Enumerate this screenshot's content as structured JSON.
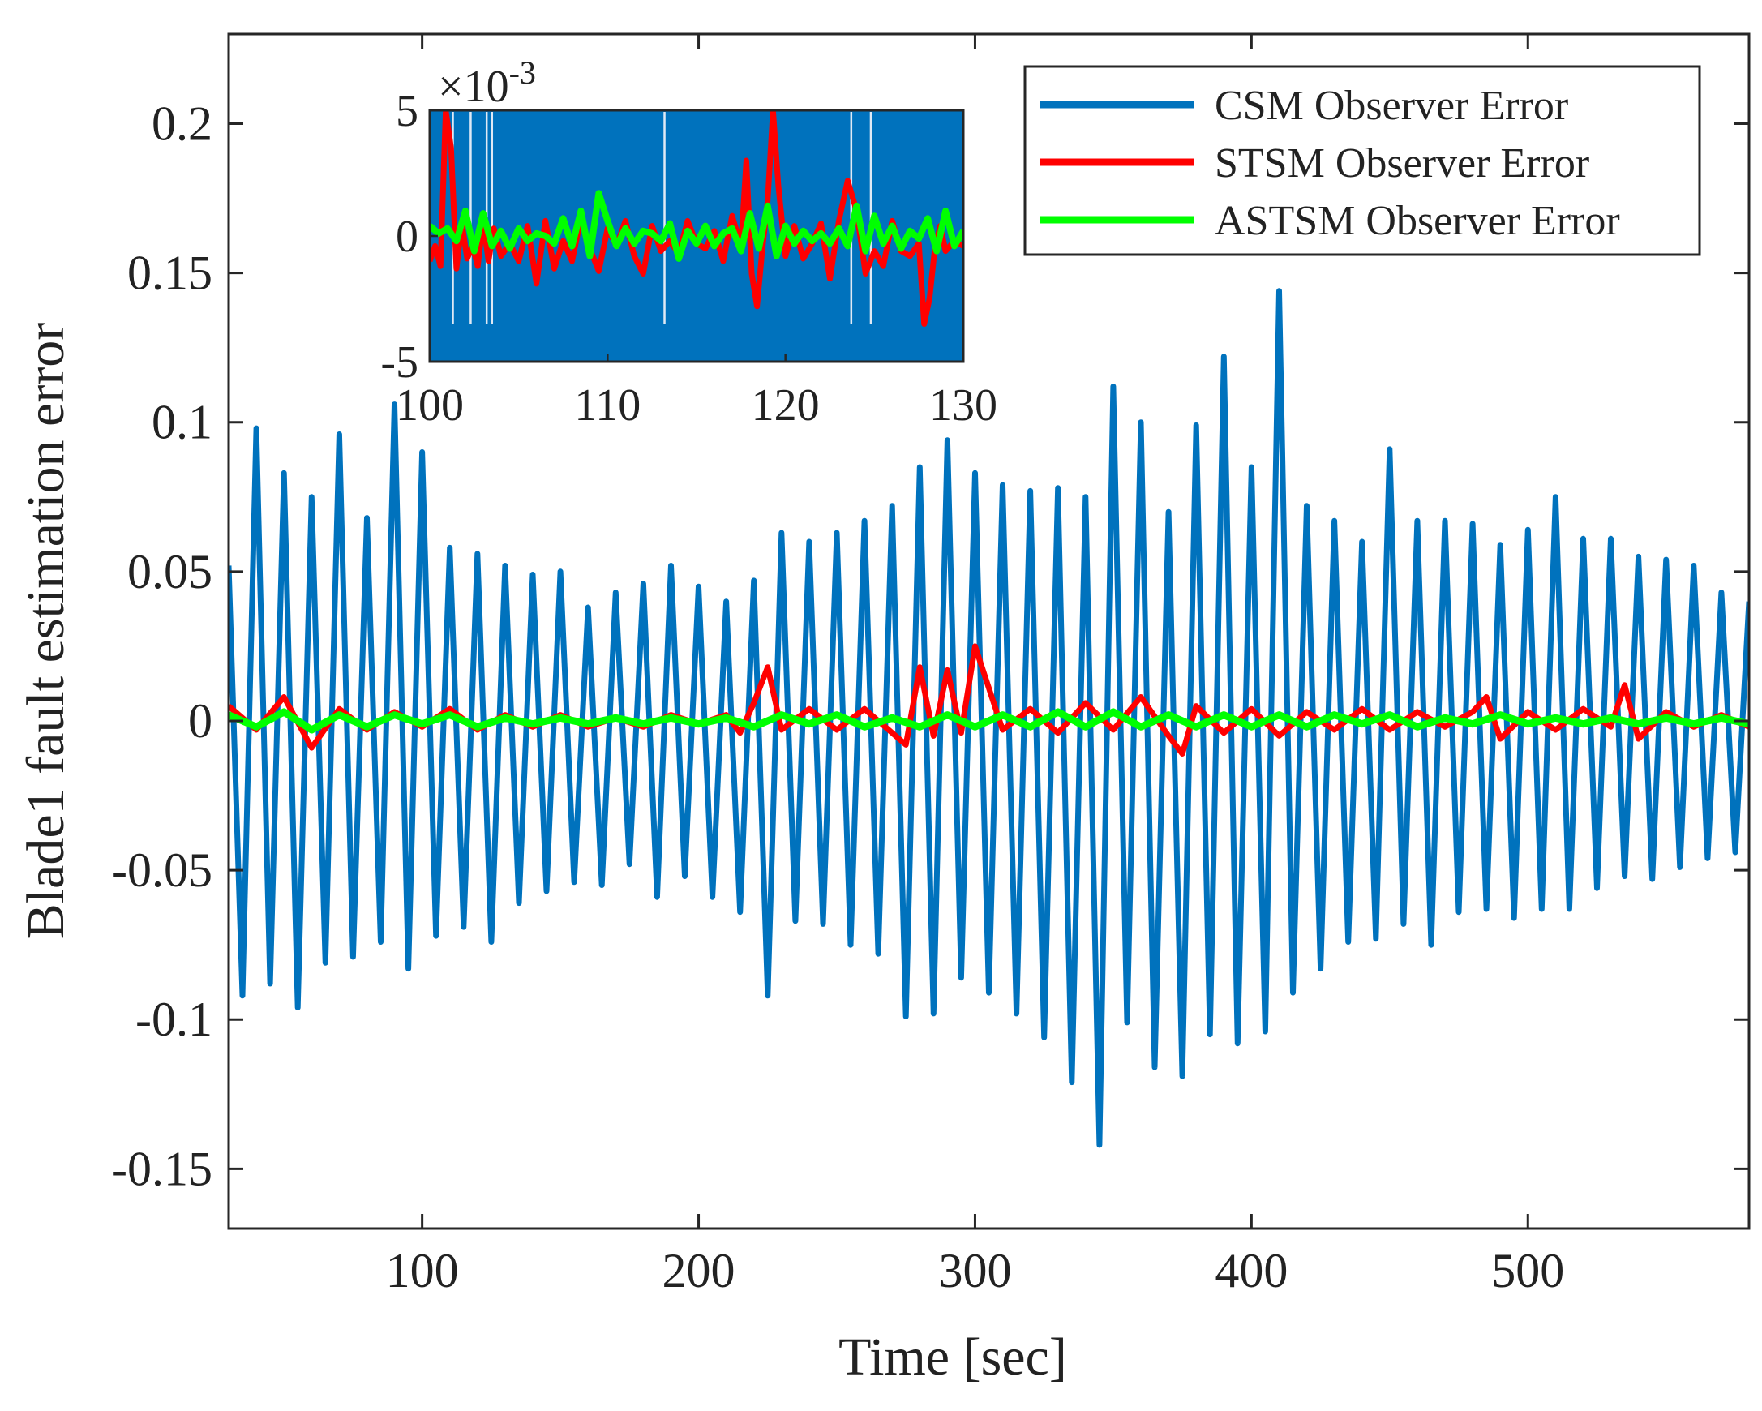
{
  "chart_data": [
    {
      "id": "main",
      "type": "line",
      "title": "",
      "xlabel": "Time [sec]",
      "ylabel": "Blade1 fault estimation error",
      "xlim": [
        30,
        580
      ],
      "ylim": [
        -0.17,
        0.23
      ],
      "xticks": [
        100,
        200,
        300,
        400,
        500
      ],
      "xtick_labels": [
        "100",
        "200",
        "300",
        "400",
        "500"
      ],
      "yticks": [
        -0.15,
        -0.1,
        -0.05,
        0,
        0.05,
        0.1,
        0.15,
        0.2
      ],
      "ytick_labels": [
        "-0.15",
        "-0.1",
        "-0.05",
        "0",
        "0.05",
        "0.1",
        "0.15",
        "0.2"
      ],
      "grid": false,
      "legend_position": "top-right",
      "series": [
        {
          "name": "CSM Observer Error",
          "color": "#0072BD",
          "x": [
            30,
            35,
            40,
            45,
            50,
            55,
            60,
            65,
            70,
            75,
            80,
            85,
            90,
            95,
            100,
            105,
            110,
            115,
            120,
            125,
            130,
            135,
            140,
            145,
            150,
            155,
            160,
            165,
            170,
            175,
            180,
            185,
            190,
            195,
            200,
            205,
            210,
            215,
            220,
            225,
            230,
            235,
            240,
            245,
            250,
            255,
            260,
            265,
            270,
            275,
            280,
            285,
            290,
            295,
            300,
            305,
            310,
            315,
            320,
            325,
            330,
            335,
            340,
            345,
            350,
            355,
            360,
            365,
            370,
            375,
            380,
            385,
            390,
            395,
            400,
            405,
            410,
            415,
            420,
            425,
            430,
            435,
            440,
            445,
            450,
            455,
            460,
            465,
            470,
            475,
            480,
            485,
            490,
            495,
            500,
            505,
            510,
            515,
            520,
            525,
            530,
            535,
            540,
            545,
            550,
            555,
            560,
            565,
            570,
            575,
            580
          ],
          "values": [
            0.052,
            -0.092,
            0.098,
            -0.088,
            0.083,
            -0.096,
            0.075,
            -0.081,
            0.096,
            -0.079,
            0.068,
            -0.074,
            0.106,
            -0.083,
            0.09,
            -0.072,
            0.058,
            -0.069,
            0.056,
            -0.074,
            0.052,
            -0.061,
            0.049,
            -0.057,
            0.05,
            -0.054,
            0.038,
            -0.055,
            0.043,
            -0.048,
            0.046,
            -0.059,
            0.052,
            -0.052,
            0.045,
            -0.059,
            0.04,
            -0.064,
            0.047,
            -0.092,
            0.063,
            -0.067,
            0.06,
            -0.068,
            0.063,
            -0.075,
            0.067,
            -0.078,
            0.072,
            -0.099,
            0.085,
            -0.098,
            0.094,
            -0.086,
            0.083,
            -0.091,
            0.079,
            -0.098,
            0.077,
            -0.106,
            0.078,
            -0.121,
            0.075,
            -0.142,
            0.112,
            -0.101,
            0.1,
            -0.116,
            0.07,
            -0.119,
            0.099,
            -0.105,
            0.122,
            -0.108,
            0.085,
            -0.104,
            0.144,
            -0.091,
            0.072,
            -0.083,
            0.067,
            -0.074,
            0.06,
            -0.073,
            0.091,
            -0.068,
            0.067,
            -0.075,
            0.067,
            -0.064,
            0.066,
            -0.063,
            0.059,
            -0.066,
            0.064,
            -0.063,
            0.075,
            -0.063,
            0.061,
            -0.056,
            0.061,
            -0.052,
            0.055,
            -0.053,
            0.054,
            -0.049,
            0.052,
            -0.046,
            0.043,
            -0.044,
            0.04
          ]
        },
        {
          "name": "STSM Observer Error",
          "color": "#FF0000",
          "x": [
            30,
            40,
            50,
            60,
            70,
            80,
            90,
            100,
            110,
            120,
            130,
            140,
            150,
            160,
            170,
            180,
            190,
            200,
            210,
            215,
            220,
            225,
            230,
            240,
            250,
            260,
            270,
            275,
            280,
            285,
            290,
            295,
            300,
            310,
            320,
            330,
            340,
            350,
            360,
            370,
            375,
            380,
            390,
            400,
            410,
            420,
            430,
            440,
            450,
            460,
            470,
            480,
            485,
            490,
            500,
            510,
            520,
            530,
            535,
            540,
            550,
            560,
            570,
            580
          ],
          "values": [
            0.005,
            -0.003,
            0.008,
            -0.009,
            0.004,
            -0.003,
            0.003,
            -0.002,
            0.004,
            -0.003,
            0.002,
            -0.002,
            0.002,
            -0.002,
            0.001,
            -0.002,
            0.002,
            -0.001,
            0.002,
            -0.004,
            0.006,
            0.018,
            -0.003,
            0.004,
            -0.003,
            0.004,
            -0.004,
            -0.008,
            0.018,
            -0.005,
            0.017,
            -0.004,
            0.025,
            -0.003,
            0.004,
            -0.004,
            0.006,
            -0.003,
            0.008,
            -0.005,
            -0.011,
            0.005,
            -0.004,
            0.004,
            -0.005,
            0.003,
            -0.003,
            0.004,
            -0.003,
            0.003,
            -0.002,
            0.003,
            0.008,
            -0.006,
            0.003,
            -0.003,
            0.004,
            -0.002,
            0.012,
            -0.006,
            0.003,
            -0.002,
            0.002,
            -0.002
          ]
        },
        {
          "name": "ASTSM Observer Error",
          "color": "#00FF00",
          "x": [
            30,
            40,
            50,
            60,
            70,
            80,
            90,
            100,
            110,
            120,
            130,
            140,
            150,
            160,
            170,
            180,
            190,
            200,
            210,
            220,
            230,
            240,
            250,
            260,
            270,
            280,
            290,
            300,
            310,
            320,
            330,
            340,
            350,
            360,
            370,
            380,
            390,
            400,
            410,
            420,
            430,
            440,
            450,
            460,
            470,
            480,
            490,
            500,
            510,
            520,
            530,
            540,
            550,
            560,
            570,
            580
          ],
          "values": [
            0.002,
            -0.002,
            0.003,
            -0.003,
            0.002,
            -0.002,
            0.002,
            -0.001,
            0.002,
            -0.002,
            0.001,
            -0.001,
            0.001,
            -0.001,
            0.001,
            -0.001,
            0.001,
            -0.001,
            0.001,
            -0.002,
            0.002,
            -0.001,
            0.002,
            -0.002,
            0.001,
            -0.002,
            0.002,
            -0.002,
            0.002,
            -0.002,
            0.003,
            -0.002,
            0.003,
            -0.002,
            0.002,
            -0.002,
            0.002,
            -0.002,
            0.002,
            -0.002,
            0.002,
            -0.001,
            0.002,
            -0.002,
            0.001,
            -0.001,
            0.002,
            -0.001,
            0.001,
            -0.001,
            0.001,
            -0.001,
            0.001,
            -0.001,
            0.001,
            -0.001
          ]
        }
      ]
    },
    {
      "id": "inset",
      "type": "line",
      "title": "",
      "xlabel": "",
      "ylabel": "",
      "y_exponent_label": "×10",
      "y_exponent": "-3",
      "xlim": [
        100,
        130
      ],
      "ylim": [
        -5,
        5
      ],
      "xticks": [
        100,
        110,
        120,
        130
      ],
      "xtick_labels": [
        "100",
        "110",
        "120",
        "130"
      ],
      "yticks": [
        -5,
        0,
        5
      ],
      "ytick_labels": [
        "-5",
        "0",
        "5"
      ],
      "grid": false,
      "series": [
        {
          "name": "CSM Observer Error",
          "color": "#0072BD",
          "note": "fills entire inset range (exceeds ±5e-3)",
          "gaps_x": [
            101.3,
            102.3,
            103.2,
            103.5,
            113.2,
            123.7,
            124.8
          ]
        },
        {
          "name": "STSM Observer Error",
          "color": "#FF0000",
          "x": [
            100,
            100.3,
            100.6,
            100.9,
            101.2,
            101.5,
            101.8,
            102.1,
            102.4,
            102.7,
            103.0,
            103.3,
            103.6,
            104.0,
            104.5,
            105.0,
            105.5,
            106.0,
            106.5,
            107.0,
            107.5,
            108.0,
            108.5,
            109.0,
            109.5,
            110.0,
            110.5,
            111.0,
            111.5,
            112.0,
            112.5,
            113.0,
            113.5,
            114.0,
            114.5,
            115.0,
            115.5,
            116.0,
            116.5,
            117.0,
            117.5,
            117.8,
            118.1,
            118.4,
            118.7,
            119.0,
            119.3,
            119.6,
            120.0,
            120.5,
            121.0,
            121.5,
            122.0,
            122.5,
            123.0,
            123.5,
            124.0,
            124.5,
            125.0,
            125.5,
            126.0,
            126.5,
            127.0,
            127.5,
            127.8,
            128.1,
            128.4,
            128.7,
            129.0,
            129.5,
            130
          ],
          "values": [
            -1.0,
            -0.4,
            -1.2,
            5.0,
            3.5,
            -1.3,
            0.5,
            -0.9,
            -0.4,
            -1.2,
            0.6,
            -1.0,
            0.3,
            -0.8,
            -0.3,
            -1.0,
            0.4,
            -1.9,
            0.6,
            -1.3,
            -0.2,
            -1.0,
            0.7,
            -0.5,
            -1.4,
            0.3,
            -0.4,
            0.6,
            -0.8,
            -1.5,
            0.4,
            -0.6,
            -0.2,
            -0.7,
            0.6,
            -0.3,
            -0.5,
            0.2,
            -1.0,
            0.8,
            -0.4,
            3.0,
            -1.5,
            -2.8,
            -0.5,
            1.4,
            5.0,
            2.0,
            -0.8,
            0.4,
            -0.9,
            -0.3,
            0.5,
            -1.7,
            0.6,
            2.2,
            1.0,
            -1.5,
            -0.6,
            -1.2,
            0.6,
            -0.6,
            -0.8,
            -0.3,
            -3.5,
            -2.5,
            -0.5,
            0.4,
            -0.6,
            -0.2,
            -0.4
          ]
        },
        {
          "name": "ASTSM Observer Error",
          "color": "#00FF00",
          "x": [
            100,
            100.5,
            101,
            101.5,
            102,
            102.5,
            103,
            103.5,
            104,
            104.5,
            105,
            105.5,
            106,
            106.5,
            107,
            107.5,
            108,
            108.5,
            109,
            109.5,
            110,
            110.5,
            111,
            111.5,
            112,
            112.5,
            113,
            113.5,
            114,
            114.5,
            115,
            115.5,
            116,
            116.5,
            117,
            117.5,
            118,
            118.5,
            119,
            119.5,
            120,
            120.5,
            121,
            121.5,
            122,
            122.5,
            123,
            123.5,
            124,
            124.5,
            125,
            125.5,
            126,
            126.5,
            127,
            127.5,
            128,
            128.5,
            129,
            129.5,
            130
          ],
          "values": [
            0.4,
            0.1,
            0.3,
            -0.2,
            1.0,
            -0.6,
            0.9,
            -0.4,
            0.2,
            -0.5,
            0.3,
            -0.2,
            0.1,
            0.0,
            -0.3,
            0.7,
            -0.4,
            1.0,
            -0.8,
            1.7,
            0.6,
            -0.4,
            0.3,
            -0.3,
            0.2,
            0.1,
            -0.2,
            0.5,
            -0.9,
            0.2,
            -0.3,
            0.4,
            -0.4,
            0.1,
            0.3,
            -0.6,
            0.9,
            -0.5,
            1.2,
            -0.8,
            0.4,
            -0.3,
            0.2,
            -0.2,
            0.1,
            -0.3,
            0.3,
            -0.4,
            1.2,
            -0.6,
            0.8,
            -0.3,
            0.4,
            -0.5,
            0.2,
            -0.1,
            0.7,
            -0.6,
            1.0,
            -0.4,
            0.2
          ]
        }
      ]
    }
  ]
}
